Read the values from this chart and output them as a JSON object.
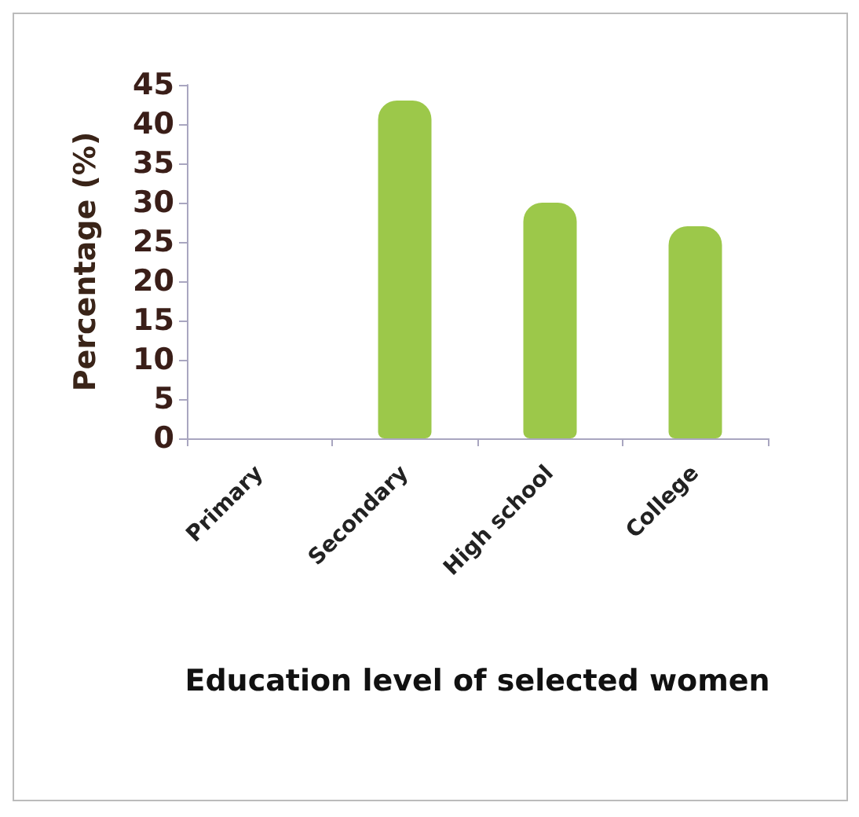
{
  "chart_data": {
    "type": "bar",
    "xlabel": "Education level of selected women",
    "ylabel": "Percentage (%)",
    "categories": [
      "Primary",
      "Secondary",
      "High school",
      "College"
    ],
    "values": [
      0,
      43,
      30,
      27
    ],
    "color": "#9cc84a",
    "ylim": [
      0,
      45
    ],
    "yticks": [
      0,
      5,
      10,
      15,
      20,
      25,
      30,
      35,
      40,
      45
    ],
    "grid": false
  }
}
